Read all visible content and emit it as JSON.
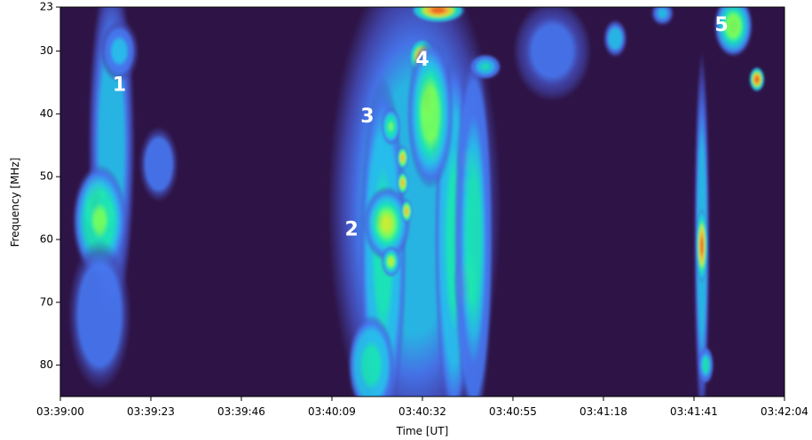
{
  "chart_data": {
    "type": "heatmap",
    "xlabel": "Time [UT]",
    "ylabel": "Frequency [MHz]",
    "x_ticks": [
      "03:39:00",
      "03:39:23",
      "03:39:46",
      "03:40:09",
      "03:40:32",
      "03:40:55",
      "03:41:18",
      "03:41:41",
      "03:42:04"
    ],
    "y_ticks": [
      23,
      30,
      40,
      50,
      60,
      70,
      80
    ],
    "xlim": [
      "03:39:00",
      "03:42:04"
    ],
    "ylim": [
      23,
      85
    ],
    "y_inverted": true,
    "colormap": "turbo",
    "background_color": "#2e1446",
    "annotations": [
      {
        "text": "1",
        "time": "03:39:15",
        "freq": 35.5
      },
      {
        "text": "2",
        "time": "03:40:14",
        "freq": 58.5
      },
      {
        "text": "3",
        "time": "03:40:18",
        "freq": 40.5
      },
      {
        "text": "4",
        "time": "03:40:32",
        "freq": 31.5
      },
      {
        "text": "5",
        "time": "03:41:48",
        "freq": 26
      }
    ],
    "emission_features": [
      {
        "name": "burst-1-stem",
        "time": "03:39:13",
        "freq": 45,
        "dt": 6,
        "df": 28,
        "intensity": 0.35
      },
      {
        "name": "burst-1-top",
        "time": "03:39:15",
        "freq": 30,
        "dt": 5,
        "df": 5,
        "intensity": 0.3
      },
      {
        "name": "burst-1-core",
        "time": "03:39:09",
        "freq": 54,
        "dt": 3.5,
        "df": 5,
        "intensity": 0.95
      },
      {
        "name": "burst-1-core-b",
        "time": "03:39:12",
        "freq": 56,
        "dt": 3,
        "df": 3,
        "intensity": 0.7
      },
      {
        "name": "burst-1-halo",
        "time": "03:39:10",
        "freq": 57,
        "dt": 7,
        "df": 9,
        "intensity": 0.55
      },
      {
        "name": "burst-1-lower",
        "time": "03:39:10",
        "freq": 72,
        "dt": 8,
        "df": 12,
        "intensity": 0.25
      },
      {
        "name": "burst-1-right",
        "time": "03:39:25",
        "freq": 48,
        "dt": 5,
        "df": 6,
        "intensity": 0.22
      },
      {
        "name": "cluster-diffuse",
        "time": "03:40:30",
        "freq": 55,
        "dt": 22,
        "df": 40,
        "intensity": 0.35
      },
      {
        "name": "cluster-band-a",
        "time": "03:40:22",
        "freq": 62,
        "dt": 6,
        "df": 28,
        "intensity": 0.5
      },
      {
        "name": "cluster-band-b",
        "time": "03:40:40",
        "freq": 60,
        "dt": 5,
        "df": 30,
        "intensity": 0.5
      },
      {
        "name": "burst-2",
        "time": "03:40:21",
        "freq": 57,
        "dt": 3,
        "df": 3,
        "intensity": 0.95
      },
      {
        "name": "burst-2-halo",
        "time": "03:40:23",
        "freq": 57.5,
        "dt": 6,
        "df": 6,
        "intensity": 0.65
      },
      {
        "name": "burst-3-low",
        "time": "03:40:24",
        "freq": 63.5,
        "dt": 2.5,
        "df": 2.5,
        "intensity": 0.65
      },
      {
        "name": "burst-3",
        "time": "03:40:24",
        "freq": 42,
        "dt": 2.5,
        "df": 3,
        "intensity": 0.55
      },
      {
        "name": "burst-3-knot-a",
        "time": "03:40:27",
        "freq": 47,
        "dt": 1.5,
        "df": 2,
        "intensity": 0.8
      },
      {
        "name": "burst-3-knot-b",
        "time": "03:40:27",
        "freq": 51,
        "dt": 1.5,
        "df": 2,
        "intensity": 0.8
      },
      {
        "name": "burst-3-knot-c",
        "time": "03:40:28",
        "freq": 55.5,
        "dt": 1.5,
        "df": 2,
        "intensity": 0.8
      },
      {
        "name": "burst-4",
        "time": "03:40:33",
        "freq": 37,
        "dt": 3,
        "df": 6,
        "intensity": 1.0
      },
      {
        "name": "burst-4-top",
        "time": "03:40:32",
        "freq": 31,
        "dt": 3.5,
        "df": 3,
        "intensity": 0.85
      },
      {
        "name": "burst-4-tail",
        "time": "03:40:35",
        "freq": 45,
        "dt": 2.5,
        "df": 4,
        "intensity": 0.85
      },
      {
        "name": "burst-4-halo",
        "time": "03:40:34",
        "freq": 40,
        "dt": 6,
        "df": 12,
        "intensity": 0.6
      },
      {
        "name": "top-cluster",
        "time": "03:40:36",
        "freq": 23.5,
        "dt": 7,
        "df": 2,
        "intensity": 0.9
      },
      {
        "name": "mid-knot-a",
        "time": "03:40:43",
        "freq": 47.5,
        "dt": 2,
        "df": 3,
        "intensity": 0.8
      },
      {
        "name": "mid-knot-b",
        "time": "03:40:43",
        "freq": 51,
        "dt": 1.5,
        "df": 2,
        "intensity": 0.6
      },
      {
        "name": "mid-lower",
        "time": "03:40:43",
        "freq": 67,
        "dt": 3,
        "df": 6,
        "intensity": 0.85
      },
      {
        "name": "mid-band",
        "time": "03:40:45",
        "freq": 60,
        "dt": 5,
        "df": 30,
        "intensity": 0.45
      },
      {
        "name": "bottom-left",
        "time": "03:40:19",
        "freq": 80,
        "dt": 6,
        "df": 8,
        "intensity": 0.5
      },
      {
        "name": "upper-right",
        "time": "03:40:48",
        "freq": 32.5,
        "dt": 4,
        "df": 2,
        "intensity": 0.4
      },
      {
        "name": "upper-fringe",
        "time": "03:41:05",
        "freq": 30,
        "dt": 10,
        "df": 8,
        "intensity": 0.2
      },
      {
        "name": "faint-top-a",
        "time": "03:41:21",
        "freq": 28,
        "dt": 3,
        "df": 3,
        "intensity": 0.35
      },
      {
        "name": "faint-top-b",
        "time": "03:41:33",
        "freq": 24,
        "dt": 3,
        "df": 2,
        "intensity": 0.3
      },
      {
        "name": "right-lane",
        "time": "03:41:43",
        "freq": 60,
        "dt": 2,
        "df": 30,
        "intensity": 0.35
      },
      {
        "name": "right-core",
        "time": "03:41:43",
        "freq": 61,
        "dt": 1.5,
        "df": 6,
        "intensity": 0.9
      },
      {
        "name": "right-low",
        "time": "03:41:44",
        "freq": 80,
        "dt": 2,
        "df": 3,
        "intensity": 0.45
      },
      {
        "name": "burst-5",
        "time": "03:41:51",
        "freq": 26,
        "dt": 3,
        "df": 3,
        "intensity": 1.0
      },
      {
        "name": "burst-5-halo",
        "time": "03:41:51",
        "freq": 26,
        "dt": 5,
        "df": 5,
        "intensity": 0.6
      },
      {
        "name": "burst-5-lower",
        "time": "03:41:57",
        "freq": 34.5,
        "dt": 2,
        "df": 2,
        "intensity": 0.85
      }
    ]
  }
}
